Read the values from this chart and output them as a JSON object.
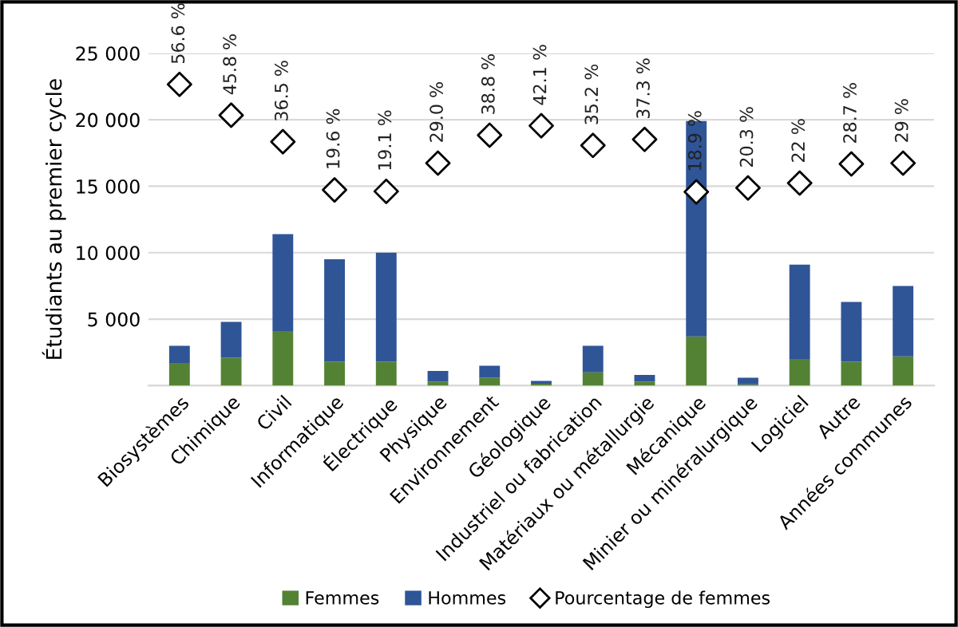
{
  "chart_data": {
    "type": "bar",
    "stacked": true,
    "ylabel": "Étudiants au premier cycle",
    "categories": [
      "Biosystèmes",
      "Chimique",
      "Civil",
      "Informatique",
      "Électrique",
      "Physique",
      "Environnement",
      "Géologique",
      "Industriel ou fabrication",
      "Matériaux ou métallurgie",
      "Mécanique",
      "Minier ou minéralurgique",
      "Logiciel",
      "Autre",
      "Années communes"
    ],
    "series": [
      {
        "name": "Femmes",
        "color": "#548235",
        "values": [
          1700,
          2100,
          4100,
          1800,
          1800,
          300,
          600,
          150,
          1000,
          300,
          3700,
          100,
          2000,
          1800,
          2200
        ]
      },
      {
        "name": "Hommes",
        "color": "#2f5597",
        "values": [
          1300,
          2700,
          7300,
          7700,
          8200,
          800,
          900,
          200,
          2000,
          500,
          16200,
          500,
          7100,
          4500,
          5300
        ]
      },
      {
        "name": "Pourcentage de femmes",
        "type": "scatter",
        "axis": "y2",
        "marker": "diamond",
        "color": "#ffffff",
        "values": [
          56.6,
          45.8,
          36.5,
          19.6,
          19.1,
          29.0,
          38.8,
          42.1,
          35.2,
          37.3,
          18.9,
          20.3,
          22,
          28.7,
          29
        ],
        "value_labels": [
          "56.6 %",
          "45.8 %",
          "36.5 %",
          "19.6 %",
          "19.1 %",
          "29.0 %",
          "38.8 %",
          "42.1 %",
          "35.2 %",
          "37.3 %",
          "18.9 %",
          "20.3 %",
          "22 %",
          "28.7 %",
          "29 %"
        ]
      }
    ],
    "ylim": [
      0,
      25000
    ],
    "yticks": [
      {
        "value": 0,
        "label": null
      },
      {
        "value": 5000,
        "label": "5 000"
      },
      {
        "value": 10000,
        "label": "10 000"
      },
      {
        "value": 15000,
        "label": "15 000"
      },
      {
        "value": 20000,
        "label": "20 000"
      },
      {
        "value": 25000,
        "label": "25 000"
      }
    ],
    "y2lim": [
      -49,
      67.5
    ],
    "grid": "y",
    "legend": "bottom"
  }
}
